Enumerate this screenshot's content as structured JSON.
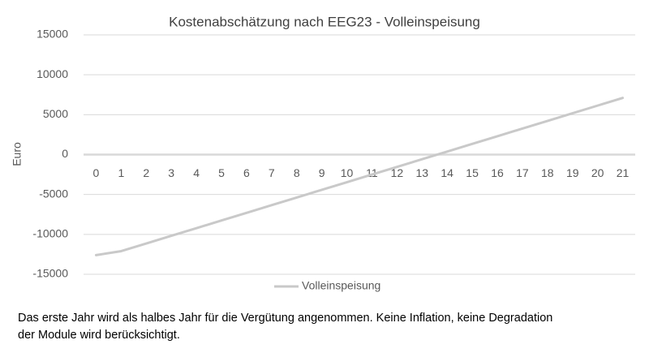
{
  "chart_data": {
    "type": "line",
    "title": "Kostenabschätzung nach EEG23 - Volleinspeisung",
    "y_label": "Euro",
    "categories": [
      "0",
      "1",
      "2",
      "3",
      "4",
      "5",
      "6",
      "7",
      "8",
      "9",
      "10",
      "11",
      "12",
      "13",
      "14",
      "15",
      "16",
      "17",
      "18",
      "19",
      "20",
      "21"
    ],
    "series": [
      {
        "name": "Volleinspeisung",
        "color": "#c9c9c9",
        "values": [
          -12600,
          -12100,
          -11140,
          -10180,
          -9220,
          -8260,
          -7300,
          -6340,
          -5380,
          -4420,
          -3460,
          -2500,
          -1540,
          -580,
          380,
          1340,
          2300,
          3260,
          4220,
          5180,
          6140,
          7100
        ]
      }
    ],
    "ylim": [
      -15000,
      15000
    ],
    "yticks": [
      -15000,
      -10000,
      -5000,
      0,
      5000,
      10000,
      15000
    ],
    "grid": true,
    "legend": "bottom"
  },
  "footnote": [
    "Das erste Jahr wird als halbes Jahr für die Vergütung angenommen. Keine Inflation, keine Degradation",
    "der Module wird berücksichtigt."
  ]
}
